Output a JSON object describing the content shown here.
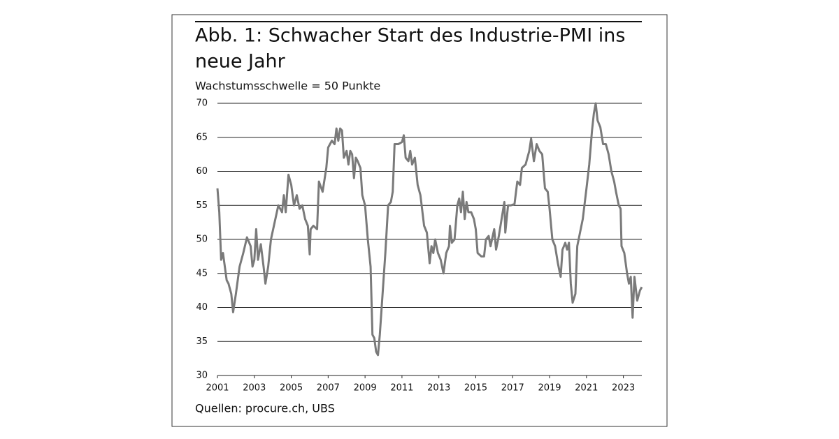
{
  "chart_data": {
    "type": "line",
    "title_lines": [
      "Abb. 1: Schwacher Start des Industrie-PMI ins",
      "neue Jahr"
    ],
    "subtitle": "Wachstumsschwelle = 50 Punkte",
    "source": "Quellen: procure.ch, UBS",
    "x": [
      2001.0,
      2001.1,
      2001.2,
      2001.3,
      2001.4,
      2001.5,
      2001.6,
      2001.75,
      2001.85,
      2002.0,
      2002.2,
      2002.4,
      2002.6,
      2002.8,
      2002.9,
      2003.0,
      2003.1,
      2003.2,
      2003.35,
      2003.5,
      2003.6,
      2003.75,
      2003.9,
      2004.1,
      2004.3,
      2004.5,
      2004.6,
      2004.7,
      2004.85,
      2005.0,
      2005.15,
      2005.3,
      2005.45,
      2005.6,
      2005.75,
      2005.9,
      2006.0,
      2006.05,
      2006.2,
      2006.4,
      2006.5,
      2006.7,
      2006.9,
      2007.0,
      2007.2,
      2007.35,
      2007.45,
      2007.55,
      2007.65,
      2007.75,
      2007.85,
      2008.0,
      2008.1,
      2008.2,
      2008.3,
      2008.4,
      2008.5,
      2008.6,
      2008.75,
      2008.85,
      2009.0,
      2009.15,
      2009.3,
      2009.4,
      2009.5,
      2009.6,
      2009.7,
      2009.8,
      2009.95,
      2010.1,
      2010.25,
      2010.4,
      2010.5,
      2010.6,
      2010.8,
      2011.0,
      2011.1,
      2011.2,
      2011.35,
      2011.45,
      2011.55,
      2011.7,
      2011.85,
      2012.0,
      2012.2,
      2012.35,
      2012.5,
      2012.6,
      2012.7,
      2012.8,
      2012.95,
      2013.1,
      2013.25,
      2013.4,
      2013.55,
      2013.6,
      2013.7,
      2013.85,
      2014.0,
      2014.1,
      2014.2,
      2014.3,
      2014.4,
      2014.5,
      2014.6,
      2014.75,
      2014.9,
      2015.0,
      2015.1,
      2015.3,
      2015.45,
      2015.55,
      2015.7,
      2015.8,
      2016.0,
      2016.1,
      2016.25,
      2016.4,
      2016.55,
      2016.6,
      2016.75,
      2016.9,
      2017.1,
      2017.25,
      2017.4,
      2017.5,
      2017.7,
      2017.9,
      2018.0,
      2018.15,
      2018.3,
      2018.45,
      2018.6,
      2018.75,
      2018.9,
      2019.0,
      2019.15,
      2019.3,
      2019.45,
      2019.6,
      2019.7,
      2019.85,
      2019.95,
      2020.05,
      2020.15,
      2020.25,
      2020.4,
      2020.5,
      2020.65,
      2020.8,
      2021.0,
      2021.15,
      2021.3,
      2021.4,
      2021.5,
      2021.6,
      2021.75,
      2021.9,
      2022.05,
      2022.2,
      2022.35,
      2022.5,
      2022.6,
      2022.75,
      2022.85,
      2022.9,
      2023.05,
      2023.2,
      2023.3,
      2023.4,
      2023.5,
      2023.6,
      2023.75,
      2023.9,
      2024.0
    ],
    "series": [
      {
        "color": "#7a7a7a",
        "values": [
          57.5,
          54,
          47,
          48,
          46,
          44,
          43.5,
          42,
          39.3,
          42,
          46,
          48,
          50.3,
          49,
          46,
          47,
          51.5,
          47,
          49.3,
          46,
          43.5,
          46,
          50,
          52.5,
          55,
          54,
          56.5,
          54,
          59.5,
          58,
          55,
          56.5,
          54.5,
          55,
          53,
          52,
          47.8,
          51.5,
          52,
          51.5,
          58.5,
          57,
          60.5,
          63.5,
          64.5,
          64,
          66.3,
          64.5,
          66.3,
          66,
          62,
          63,
          61,
          63,
          62.5,
          59,
          62,
          61.5,
          60.5,
          56.5,
          55,
          50,
          46,
          36,
          35.5,
          33.5,
          33,
          36,
          42,
          48,
          55,
          55.5,
          57,
          64,
          64,
          64.3,
          65.3,
          62,
          61.5,
          63,
          61,
          62,
          58,
          56.5,
          52,
          51,
          46.5,
          49,
          48,
          50,
          48,
          47,
          45,
          48,
          49,
          52,
          49.5,
          50,
          55,
          56,
          54,
          57,
          53,
          55.5,
          54,
          54,
          53,
          51.5,
          48,
          47.5,
          47.5,
          50,
          50.5,
          49,
          51.5,
          48.5,
          50.5,
          53,
          55.5,
          51,
          55,
          55,
          55.2,
          58.5,
          58,
          60.5,
          61,
          63,
          64.8,
          61.5,
          64,
          63,
          62.5,
          57.5,
          57,
          54.5,
          50,
          49,
          46.5,
          44.5,
          48.5,
          49.5,
          48.5,
          49.5,
          43.5,
          40.7,
          42,
          49,
          51,
          53,
          57.5,
          61,
          66,
          68.5,
          70,
          67.5,
          66.5,
          64,
          64,
          62.5,
          60,
          58.5,
          57,
          55,
          54.5,
          49,
          48,
          45,
          43.5,
          44.5,
          38.5,
          44.5,
          41,
          42.5,
          43
        ]
      }
    ],
    "xlim": [
      2001,
      2024
    ],
    "xticks": [
      2001,
      2003,
      2005,
      2007,
      2009,
      2011,
      2013,
      2015,
      2017,
      2019,
      2021,
      2023
    ],
    "ylim": [
      30,
      70
    ],
    "yticks": [
      30,
      35,
      40,
      45,
      50,
      55,
      60,
      65,
      70
    ],
    "grid": true
  }
}
